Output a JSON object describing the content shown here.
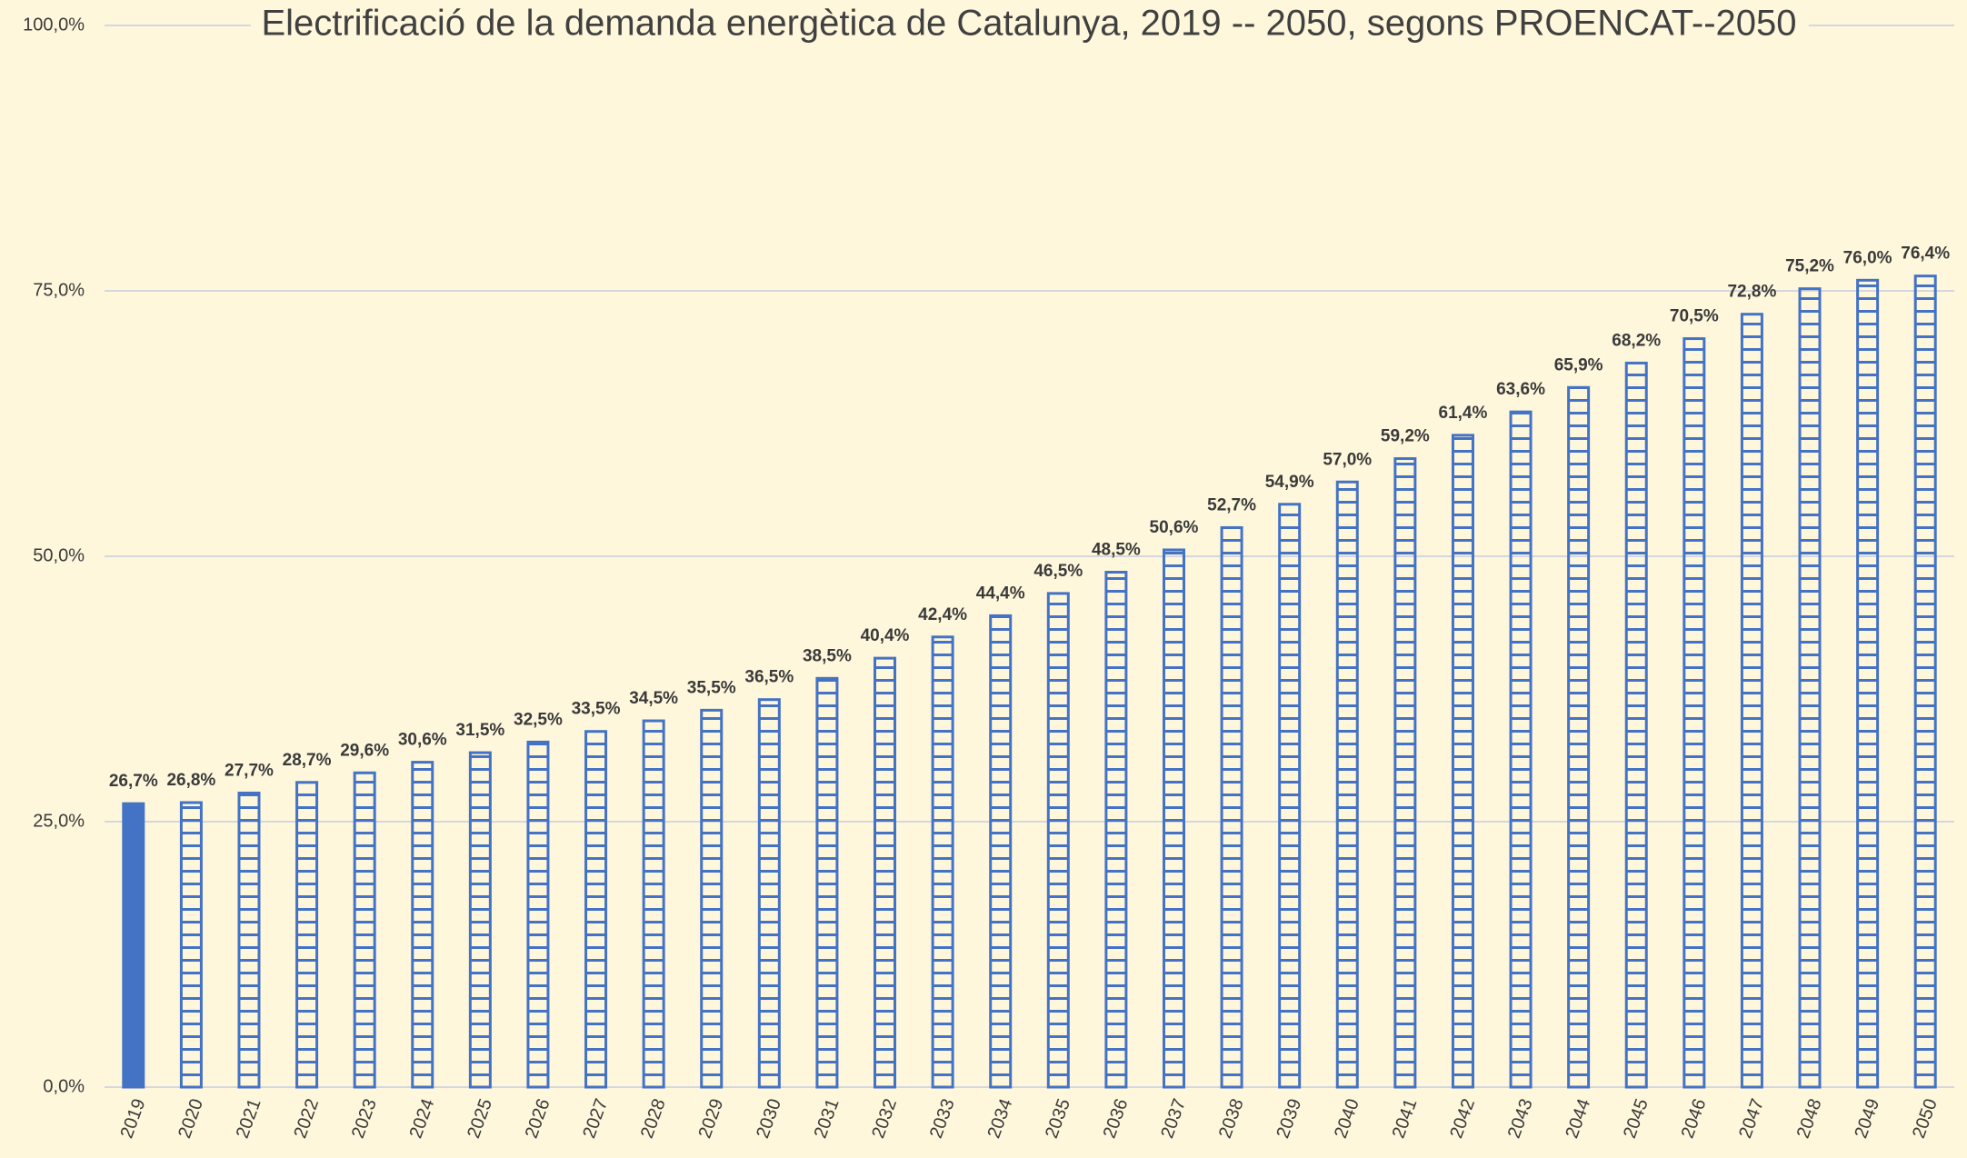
{
  "chart_data": {
    "type": "bar",
    "title": "Electrificació de la demanda energètica de Catalunya, 2019 -- 2050, segons PROENCAT--2050",
    "categories": [
      "2019",
      "2020",
      "2021",
      "2022",
      "2023",
      "2024",
      "2025",
      "2026",
      "2027",
      "2028",
      "2029",
      "2030",
      "2031",
      "2032",
      "2033",
      "2034",
      "2035",
      "2036",
      "2037",
      "2038",
      "2039",
      "2040",
      "2041",
      "2042",
      "2043",
      "2044",
      "2045",
      "2046",
      "2047",
      "2048",
      "2049",
      "2050"
    ],
    "values": [
      26.7,
      26.8,
      27.7,
      28.7,
      29.6,
      30.6,
      31.5,
      32.5,
      33.5,
      34.5,
      35.5,
      36.5,
      38.5,
      40.4,
      42.4,
      44.4,
      46.5,
      48.5,
      50.6,
      52.7,
      54.9,
      57.0,
      59.2,
      61.4,
      63.6,
      65.9,
      68.2,
      70.5,
      72.8,
      75.2,
      76.0,
      76.4
    ],
    "value_labels": [
      "26,7%",
      "26,8%",
      "27,7%",
      "28,7%",
      "29,6%",
      "30,6%",
      "31,5%",
      "32,5%",
      "33,5%",
      "34,5%",
      "35,5%",
      "36,5%",
      "38,5%",
      "40,4%",
      "42,4%",
      "44,4%",
      "46,5%",
      "48,5%",
      "50,6%",
      "52,7%",
      "54,9%",
      "57,0%",
      "59,2%",
      "61,4%",
      "63,6%",
      "65,9%",
      "68,2%",
      "70,5%",
      "72,8%",
      "75,2%",
      "76,0%",
      "76,4%"
    ],
    "color": "#4472c4",
    "ylim": [
      0,
      100
    ],
    "yticks": [
      {
        "value": 0,
        "label": "0,0%"
      },
      {
        "value": 25,
        "label": "25,0%"
      },
      {
        "value": 50,
        "label": "50,0%"
      },
      {
        "value": 75,
        "label": "75,0%"
      },
      {
        "value": 100,
        "label": "100,0%"
      }
    ],
    "grid": true
  }
}
